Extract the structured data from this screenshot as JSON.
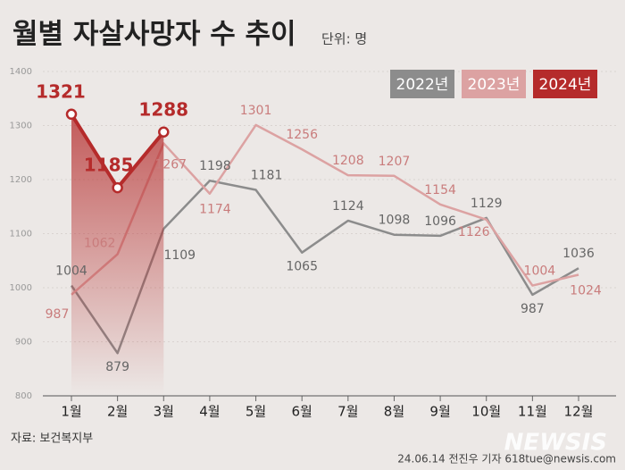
{
  "chart_data": {
    "type": "line",
    "title": "월별 자살사망자 수 추이",
    "subtitle": "단위: 명",
    "categories": [
      "1월",
      "2월",
      "3월",
      "4월",
      "5월",
      "6월",
      "7월",
      "8월",
      "9월",
      "10월",
      "11월",
      "12월"
    ],
    "series": [
      {
        "name": "2022년",
        "color": "#8c8c8c",
        "values": [
          1004,
          879,
          1109,
          1198,
          1181,
          1065,
          1124,
          1098,
          1096,
          1129,
          987,
          1036
        ]
      },
      {
        "name": "2023년",
        "color": "#dca2a2",
        "values": [
          987,
          1062,
          1267,
          1174,
          1301,
          1256,
          1208,
          1207,
          1154,
          1126,
          1004,
          1024
        ]
      },
      {
        "name": "2024년",
        "color": "#b52b2b",
        "values": [
          1321,
          1185,
          1288,
          null,
          null,
          null,
          null,
          null,
          null,
          null,
          null,
          null
        ]
      }
    ],
    "ylim": [
      800,
      1400
    ],
    "yticks": [
      800,
      900,
      1000,
      1100,
      1200,
      1300,
      1400
    ],
    "grid": true,
    "legend": "top-right",
    "source": "자료: 보건복지부",
    "credit": "24.06.14 전진우 기자 618tue@newsis.com",
    "watermark": "NEWSIS"
  }
}
